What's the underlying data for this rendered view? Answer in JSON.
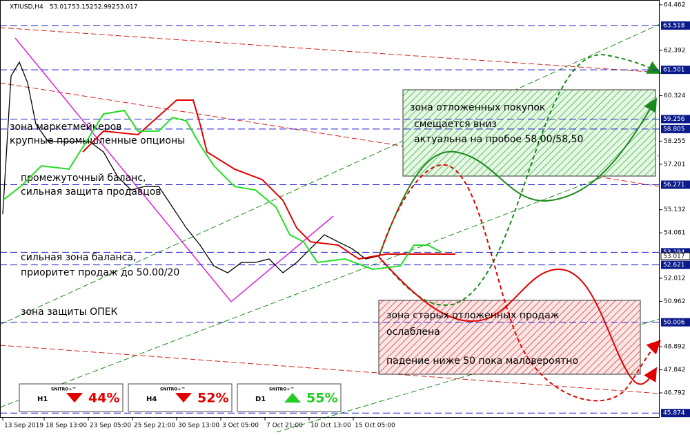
{
  "chart_data": {
    "type": "line",
    "header": {
      "symbol": "XTIUSD,H4",
      "ohlc": [
        "53.017",
        "53.152",
        "52.992",
        "53.017"
      ]
    },
    "xlim": [
      -2,
      476
    ],
    "ylim": [
      45.66,
      64.68
    ],
    "xticks": [
      {
        "value": 0,
        "label": "13 Sep 2019"
      },
      {
        "value": 30,
        "label": "18 Sep 13:00"
      },
      {
        "value": 62,
        "label": "23 Sep 05:00"
      },
      {
        "value": 94,
        "label": "25 Sep 21:00"
      },
      {
        "value": 126,
        "label": "30 Sep 13:00"
      },
      {
        "value": 158,
        "label": "3 Oct 05:00"
      },
      {
        "value": 190,
        "label": "7 Oct 21:00"
      },
      {
        "value": 222,
        "label": "10 Oct 13:00"
      },
      {
        "value": 254,
        "label": "15 Oct 05:00"
      }
    ],
    "yticks": [
      64.462,
      62.392,
      60.324,
      58.255,
      57.201,
      55.132,
      54.081,
      52.012,
      50.962,
      48.892,
      47.842,
      46.792
    ],
    "levels": [
      63.518,
      61.501,
      59.256,
      58.805,
      56.271,
      53.194,
      52.621,
      50.006,
      45.874
    ],
    "current_price": 53.017,
    "series": [
      {
        "name": "XTIUSD",
        "color": "#000000",
        "x": [
          0,
          6,
          12,
          18,
          24,
          33,
          43,
          53,
          63,
          73,
          83,
          93,
          103,
          113,
          123,
          133,
          143,
          153,
          163,
          173,
          183,
          193,
          203,
          213,
          223,
          233,
          243,
          253,
          263,
          272
        ],
        "values": [
          54.93,
          61.22,
          61.85,
          60.91,
          59.02,
          58.23,
          58.23,
          58.23,
          58.23,
          57.76,
          56.66,
          56.03,
          56.19,
          56.19,
          55.25,
          54.3,
          53.52,
          52.57,
          52.26,
          52.73,
          52.73,
          52.89,
          52.26,
          52.73,
          53.36,
          53.99,
          53.67,
          53.36,
          52.89,
          53.02
        ]
      },
      {
        "color": "#e00000",
        "x": [
          58,
          73,
          98,
          126,
          138,
          143,
          148,
          168,
          188,
          203,
          213,
          223,
          243,
          258,
          278,
          328
        ],
        "values": [
          57.76,
          58.71,
          58.55,
          60.12,
          60.12,
          59.02,
          57.76,
          56.98,
          56.5,
          55.56,
          54.3,
          53.67,
          53.52,
          52.89,
          53.11,
          53.11
        ]
      },
      {
        "color": "#22dd22",
        "x": [
          0,
          13,
          28,
          48,
          73,
          88,
          98,
          113,
          123,
          133,
          143,
          153,
          168,
          183,
          198,
          208,
          218,
          228,
          248,
          268,
          288,
          298,
          308,
          318
        ],
        "values": [
          55.56,
          56.19,
          57.13,
          56.98,
          59.49,
          59.65,
          58.71,
          58.71,
          59.33,
          59.18,
          58.08,
          57.13,
          56.19,
          56.03,
          55.25,
          53.99,
          53.67,
          52.73,
          52.89,
          52.42,
          52.57,
          53.52,
          53.52,
          53.2
        ]
      }
    ],
    "annotations": [
      "зона маркетмейкеров",
      "крупные промышленные опционы",
      "промежуточный баланс,",
      "сильная защита продавцов",
      "сильная зона баланса,",
      "приоритет продаж до 50.00/20",
      "зона защиты ОПЕК"
    ],
    "buy_zone": [
      "зона отложенных покупок",
      "смещается вниз",
      "актуальна на пробое 58,00/58,50"
    ],
    "sell_zone": [
      "зона старых отложенных продаж",
      "ослаблена",
      "падение ниже 50 пока маловероятно"
    ],
    "widgets": [
      {
        "brand": "SNITRO+™",
        "timeframe": "H1",
        "percent": "44%",
        "direction": "down"
      },
      {
        "brand": "SNITRO+™",
        "timeframe": "H4",
        "percent": "52%",
        "direction": "down"
      },
      {
        "brand": "SNITRO+™",
        "timeframe": "D1",
        "percent": "55%",
        "direction": "up"
      }
    ]
  }
}
